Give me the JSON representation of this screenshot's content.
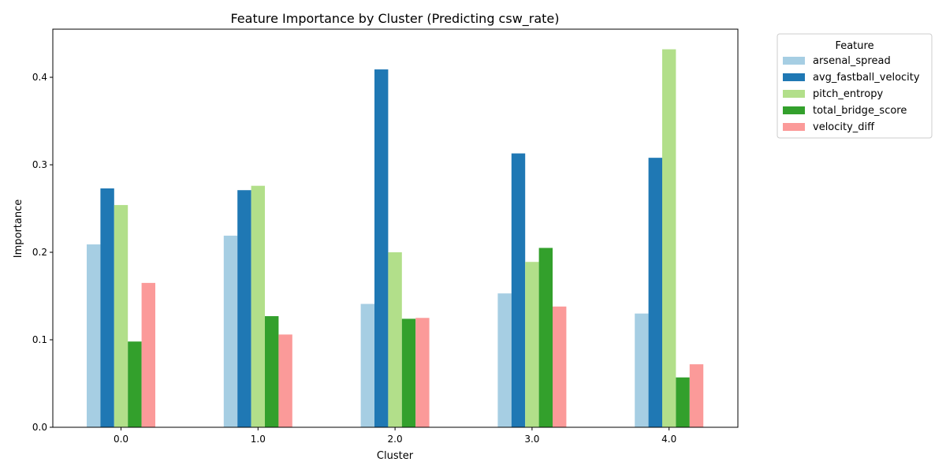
{
  "chart_data": {
    "type": "bar",
    "title": "Feature Importance by Cluster (Predicting csw_rate)",
    "xlabel": "Cluster",
    "ylabel": "Importance",
    "categories": [
      "0.0",
      "1.0",
      "2.0",
      "3.0",
      "4.0"
    ],
    "ylim": [
      0,
      0.455
    ],
    "yticks": [
      0.0,
      0.1,
      0.2,
      0.3,
      0.4
    ],
    "ytick_labels": [
      "0.0",
      "0.1",
      "0.2",
      "0.3",
      "0.4"
    ],
    "grid": false,
    "legend": {
      "title": "Feature",
      "placement": "outside-top-right"
    },
    "series": [
      {
        "name": "arsenal_spread",
        "color": "#a6cee3",
        "values": [
          0.209,
          0.219,
          0.141,
          0.153,
          0.13
        ]
      },
      {
        "name": "avg_fastball_velocity",
        "color": "#1f78b4",
        "values": [
          0.273,
          0.271,
          0.409,
          0.313,
          0.308
        ]
      },
      {
        "name": "pitch_entropy",
        "color": "#b2df8a",
        "values": [
          0.254,
          0.276,
          0.2,
          0.189,
          0.432
        ]
      },
      {
        "name": "total_bridge_score",
        "color": "#33a02c",
        "values": [
          0.098,
          0.127,
          0.124,
          0.205,
          0.057
        ]
      },
      {
        "name": "velocity_diff",
        "color": "#fb9a99",
        "values": [
          0.165,
          0.106,
          0.125,
          0.138,
          0.072
        ]
      }
    ]
  }
}
